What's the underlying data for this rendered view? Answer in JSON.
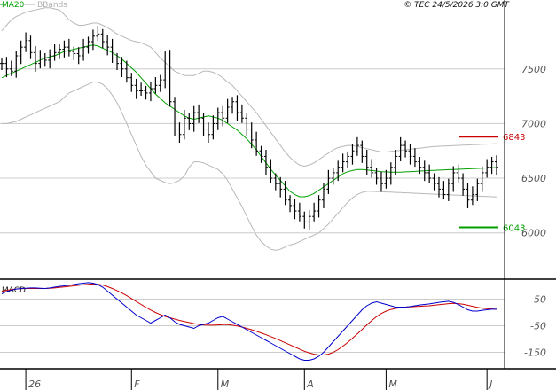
{
  "header": {
    "legend": [
      {
        "label": "MA20",
        "color": "#00a000"
      },
      {
        "label": "BBands",
        "color": "#b0b0b0"
      }
    ],
    "copyright": "© TEC 24/5/2026 3:0 GMT"
  },
  "chart_data": [
    {
      "type": "ohlc",
      "y_ticks": [
        "7500",
        "7000",
        "6500",
        "6000"
      ],
      "y_tick_values": [
        7500,
        7000,
        6500,
        6000
      ],
      "ylim": [
        5600,
        8050
      ],
      "x_count": 104,
      "x_ticks": [
        {
          "label": "26",
          "index": 5
        },
        {
          "label": "F",
          "index": 27
        },
        {
          "label": "M",
          "index": 45
        },
        {
          "label": "A",
          "index": 63
        },
        {
          "label": "M",
          "index": 80
        },
        {
          "label": "J",
          "index": 101
        }
      ],
      "levels": [
        {
          "label": "6843",
          "value": 6880,
          "color": "#cc0000"
        },
        {
          "label": "6043",
          "value": 6050,
          "color": "#00a000"
        }
      ],
      "close": [
        7550,
        7500,
        7480,
        7620,
        7700,
        7760,
        7650,
        7550,
        7600,
        7580,
        7620,
        7650,
        7680,
        7700,
        7660,
        7640,
        7620,
        7700,
        7750,
        7800,
        7820,
        7750,
        7700,
        7600,
        7550,
        7500,
        7420,
        7350,
        7300,
        7300,
        7280,
        7320,
        7350,
        7400,
        7600,
        7200,
        6950,
        6900,
        7050,
        7000,
        7100,
        7050,
        6950,
        6900,
        7000,
        7100,
        7050,
        7150,
        7200,
        7100,
        7050,
        6950,
        6850,
        6750,
        6700,
        6600,
        6500,
        6450,
        6400,
        6300,
        6250,
        6200,
        6150,
        6100,
        6150,
        6200,
        6300,
        6400,
        6500,
        6550,
        6600,
        6650,
        6700,
        6750,
        6800,
        6700,
        6600,
        6550,
        6500,
        6450,
        6500,
        6600,
        6700,
        6800,
        6750,
        6700,
        6650,
        6600,
        6550,
        6500,
        6450,
        6400,
        6350,
        6450,
        6550,
        6500,
        6400,
        6300,
        6350,
        6450,
        6550,
        6600,
        6650,
        6600
      ],
      "ma20": [
        7420,
        7440,
        7460,
        7480,
        7500,
        7520,
        7540,
        7560,
        7580,
        7600,
        7610,
        7620,
        7640,
        7660,
        7670,
        7680,
        7690,
        7700,
        7710,
        7720,
        7710,
        7690,
        7670,
        7650,
        7620,
        7590,
        7550,
        7510,
        7470,
        7420,
        7370,
        7320,
        7270,
        7230,
        7190,
        7160,
        7130,
        7100,
        7070,
        7050,
        7040,
        7050,
        7060,
        7070,
        7060,
        7050,
        7030,
        7000,
        6970,
        6940,
        6900,
        6860,
        6810,
        6760,
        6700,
        6640,
        6580,
        6530,
        6480,
        6430,
        6380,
        6350,
        6330,
        6330,
        6340,
        6360,
        6390,
        6420,
        6450,
        6480,
        6510,
        6540,
        6560,
        6570,
        6580,
        6580,
        6575,
        6570,
        6565,
        6560,
        6558,
        6556,
        6555,
        6556,
        6558,
        6560,
        6562,
        6565,
        6568,
        6570,
        6572,
        6574,
        6576,
        6578,
        6580,
        6582,
        6584,
        6586,
        6588,
        6590,
        6592,
        6594,
        6596,
        6598
      ],
      "bb_upper": [
        7850,
        7900,
        7950,
        7980,
        8000,
        8020,
        8030,
        8040,
        8050,
        8060,
        8060,
        8050,
        8040,
        8000,
        7950,
        7920,
        7900,
        7900,
        7910,
        7920,
        7920,
        7900,
        7880,
        7850,
        7820,
        7800,
        7780,
        7760,
        7750,
        7740,
        7720,
        7700,
        7650,
        7600,
        7560,
        7520,
        7480,
        7460,
        7440,
        7440,
        7440,
        7460,
        7480,
        7480,
        7470,
        7450,
        7420,
        7380,
        7350,
        7300,
        7250,
        7200,
        7150,
        7100,
        7040,
        6980,
        6920,
        6860,
        6800,
        6740,
        6690,
        6650,
        6620,
        6610,
        6620,
        6640,
        6670,
        6700,
        6730,
        6760,
        6780,
        6790,
        6800,
        6800,
        6790,
        6780,
        6770,
        6760,
        6750,
        6740,
        6740,
        6745,
        6750,
        6755,
        6760,
        6765,
        6770,
        6775,
        6780,
        6785,
        6790,
        6792,
        6794,
        6796,
        6798,
        6800,
        6802,
        6804,
        6806,
        6808,
        6810,
        6812,
        6814,
        6816
      ],
      "bb_lower": [
        7000,
        7000,
        7010,
        7020,
        7040,
        7060,
        7080,
        7100,
        7120,
        7140,
        7160,
        7180,
        7200,
        7240,
        7280,
        7300,
        7320,
        7340,
        7360,
        7380,
        7380,
        7360,
        7320,
        7260,
        7190,
        7100,
        7000,
        6900,
        6800,
        6700,
        6620,
        6560,
        6500,
        6480,
        6460,
        6450,
        6460,
        6480,
        6520,
        6600,
        6650,
        6650,
        6640,
        6620,
        6600,
        6580,
        6540,
        6480,
        6400,
        6320,
        6240,
        6150,
        6060,
        5980,
        5920,
        5880,
        5850,
        5840,
        5850,
        5870,
        5890,
        5900,
        5920,
        5940,
        5960,
        5980,
        6000,
        6040,
        6080,
        6130,
        6180,
        6230,
        6280,
        6320,
        6350,
        6370,
        6380,
        6380,
        6378,
        6376,
        6374,
        6372,
        6370,
        6368,
        6366,
        6364,
        6362,
        6360,
        6358,
        6356,
        6354,
        6352,
        6350,
        6348,
        6346,
        6344,
        6342,
        6340,
        6338,
        6336,
        6334,
        6332,
        6330,
        6328
      ]
    },
    {
      "type": "line",
      "title": "MACD",
      "y_ticks": [
        "50",
        "-50",
        "-150"
      ],
      "y_tick_values": [
        50,
        -50,
        -150
      ],
      "ylim": [
        -205,
        115
      ],
      "series": [
        {
          "color": "#0000cc",
          "values": [
            70,
            78,
            84,
            88,
            90,
            91,
            92,
            92,
            91,
            90,
            92,
            95,
            98,
            100,
            102,
            105,
            108,
            110,
            112,
            110,
            105,
            95,
            80,
            65,
            50,
            35,
            20,
            5,
            -10,
            -20,
            -30,
            -40,
            -30,
            -20,
            -10,
            -20,
            -35,
            -45,
            -50,
            -55,
            -60,
            -50,
            -45,
            -40,
            -30,
            -20,
            -15,
            -25,
            -35,
            -45,
            -55,
            -65,
            -75,
            -85,
            -95,
            -105,
            -115,
            -125,
            -135,
            -145,
            -155,
            -165,
            -175,
            -180,
            -180,
            -175,
            -165,
            -150,
            -130,
            -110,
            -90,
            -70,
            -50,
            -30,
            -10,
            10,
            25,
            35,
            40,
            35,
            30,
            25,
            20,
            20,
            20,
            22,
            25,
            28,
            30,
            32,
            35,
            38,
            40,
            42,
            38,
            30,
            20,
            10,
            5,
            5,
            8,
            10,
            12,
            12
          ]
        },
        {
          "color": "#cc0000",
          "values": [
            80,
            83,
            86,
            88,
            89,
            90,
            90,
            90,
            90,
            90,
            91,
            92,
            94,
            96,
            98,
            100,
            102,
            104,
            106,
            107,
            106,
            103,
            97,
            90,
            82,
            73,
            63,
            52,
            41,
            30,
            19,
            9,
            0,
            -8,
            -15,
            -20,
            -25,
            -30,
            -34,
            -38,
            -42,
            -45,
            -47,
            -48,
            -48,
            -47,
            -46,
            -46,
            -48,
            -51,
            -55,
            -60,
            -65,
            -71,
            -77,
            -84,
            -91,
            -98,
            -106,
            -114,
            -122,
            -130,
            -138,
            -146,
            -152,
            -157,
            -160,
            -160,
            -157,
            -150,
            -140,
            -127,
            -113,
            -97,
            -81,
            -64,
            -47,
            -31,
            -16,
            -4,
            5,
            11,
            15,
            18,
            20,
            21,
            22,
            23,
            24,
            25,
            27,
            29,
            31,
            33,
            34,
            33,
            31,
            27,
            23,
            19,
            16,
            14,
            13,
            12
          ]
        }
      ]
    }
  ]
}
